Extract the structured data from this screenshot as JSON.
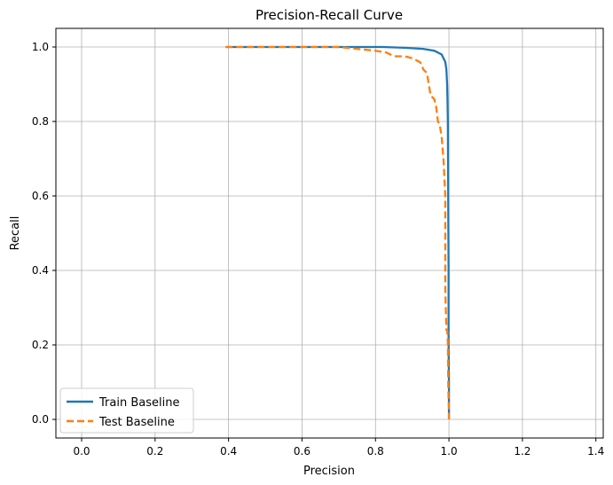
{
  "chart_data": {
    "type": "line",
    "title": "Precision-Recall Curve",
    "xlabel": "Precision",
    "ylabel": "Recall",
    "xlim": [
      -0.07,
      1.42
    ],
    "ylim": [
      -0.05,
      1.05
    ],
    "xticks": [
      0.0,
      0.2,
      0.4,
      0.6,
      0.8,
      1.0,
      1.2,
      1.4
    ],
    "yticks": [
      0.0,
      0.2,
      0.4,
      0.6,
      0.8,
      1.0
    ],
    "xtick_labels": [
      "0.0",
      "0.2",
      "0.4",
      "0.6",
      "0.8",
      "1.0",
      "1.2",
      "1.4"
    ],
    "ytick_labels": [
      "0.0",
      "0.2",
      "0.4",
      "0.6",
      "0.8",
      "1.0"
    ],
    "grid": true,
    "legend_position": "lower-left",
    "series": [
      {
        "name": "Train Baseline",
        "color": "#1f77b4",
        "style": "solid",
        "x": [
          0.392,
          0.6,
          0.75,
          0.82,
          0.88,
          0.93,
          0.96,
          0.98,
          0.99,
          0.993,
          0.995,
          0.996,
          0.997,
          0.998,
          0.999,
          0.999,
          1.0,
          1.0,
          1.0
        ],
        "y": [
          1.0,
          1.0,
          1.0,
          1.0,
          0.998,
          0.995,
          0.99,
          0.98,
          0.96,
          0.94,
          0.9,
          0.86,
          0.8,
          0.6,
          0.4,
          0.2,
          0.1,
          0.02,
          0.0
        ]
      },
      {
        "name": "Test Baseline",
        "color": "#ff7f0e",
        "style": "dashed",
        "x": [
          0.392,
          0.6,
          0.7,
          0.75,
          0.8,
          0.83,
          0.85,
          0.88,
          0.9,
          0.91,
          0.92,
          0.925,
          0.93,
          0.935,
          0.94,
          0.945,
          0.95,
          0.96,
          0.965,
          0.97,
          0.975,
          0.98,
          0.985,
          0.99,
          0.99,
          0.993,
          0.995,
          0.996,
          0.997,
          0.998,
          0.999,
          1.0,
          1.0
        ],
        "y": [
          1.0,
          1.0,
          1.0,
          0.995,
          0.99,
          0.985,
          0.975,
          0.975,
          0.97,
          0.965,
          0.96,
          0.955,
          0.94,
          0.935,
          0.93,
          0.9,
          0.87,
          0.86,
          0.84,
          0.8,
          0.79,
          0.76,
          0.7,
          0.6,
          0.35,
          0.24,
          0.24,
          0.23,
          0.2,
          0.1,
          0.05,
          0.02,
          0.0
        ]
      }
    ]
  }
}
